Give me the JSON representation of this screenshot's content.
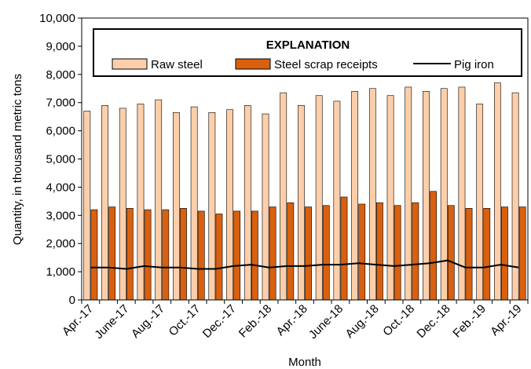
{
  "chart_data": {
    "type": "bar",
    "xlabel": "Month",
    "ylabel": "Quantity, in thousand metric tons",
    "ylim": [
      0,
      10000
    ],
    "yticks": [
      0,
      1000,
      2000,
      3000,
      4000,
      5000,
      6000,
      7000,
      8000,
      9000,
      10000
    ],
    "ytick_labels": [
      "0",
      "1,000",
      "2,000",
      "3,000",
      "4,000",
      "5,000",
      "6,000",
      "7,000",
      "8,000",
      "9,000",
      "10,000"
    ],
    "grid": false,
    "legend": {
      "title": "EXPLANATION",
      "placement": "top",
      "entries": [
        "Raw steel",
        "Steel scrap receipts",
        "Pig iron"
      ]
    },
    "categories": [
      "Apr.-17",
      "May-17",
      "June-17",
      "July-17",
      "Aug.-17",
      "Sep.-17",
      "Oct.-17",
      "Nov.-17",
      "Dec.-17",
      "Jan.-18",
      "Feb.-18",
      "Mar.-18",
      "Apr.-18",
      "May-18",
      "June-18",
      "July-18",
      "Aug.-18",
      "Sep.-18",
      "Oct.-18",
      "Nov.-18",
      "Dec.-18",
      "Jan.-19",
      "Feb.-19",
      "Mar.-19",
      "Apr.-19"
    ],
    "category_labels_shown": [
      "Apr.-17",
      "June-17",
      "Aug.-17",
      "Oct.-17",
      "Dec.-17",
      "Feb.-18",
      "Apr.-18",
      "June-18",
      "Aug.-18",
      "Oct.-18",
      "Dec.-18",
      "Feb.-19",
      "Apr.-19"
    ],
    "series": [
      {
        "name": "Raw steel",
        "type": "bar",
        "color": "#FCCFAA",
        "values": [
          6700,
          6900,
          6800,
          6950,
          7100,
          6650,
          6850,
          6650,
          6750,
          6900,
          6600,
          7350,
          6900,
          7250,
          7050,
          7400,
          7500,
          7250,
          7550,
          7400,
          7500,
          7550,
          6950,
          7700,
          7350
        ]
      },
      {
        "name": "Steel scrap receipts",
        "type": "bar",
        "color": "#D9600F",
        "values": [
          3200,
          3300,
          3250,
          3200,
          3200,
          3250,
          3150,
          3050,
          3150,
          3150,
          3300,
          3450,
          3300,
          3350,
          3650,
          3400,
          3450,
          3350,
          3450,
          3850,
          3350,
          3250,
          3250,
          3300,
          3300
        ]
      },
      {
        "name": "Pig iron",
        "type": "line",
        "color": "#000000",
        "values": [
          1150,
          1150,
          1100,
          1200,
          1150,
          1150,
          1100,
          1100,
          1200,
          1250,
          1150,
          1200,
          1200,
          1250,
          1250,
          1300,
          1250,
          1200,
          1250,
          1300,
          1400,
          1150,
          1150,
          1250,
          1150
        ]
      }
    ]
  }
}
